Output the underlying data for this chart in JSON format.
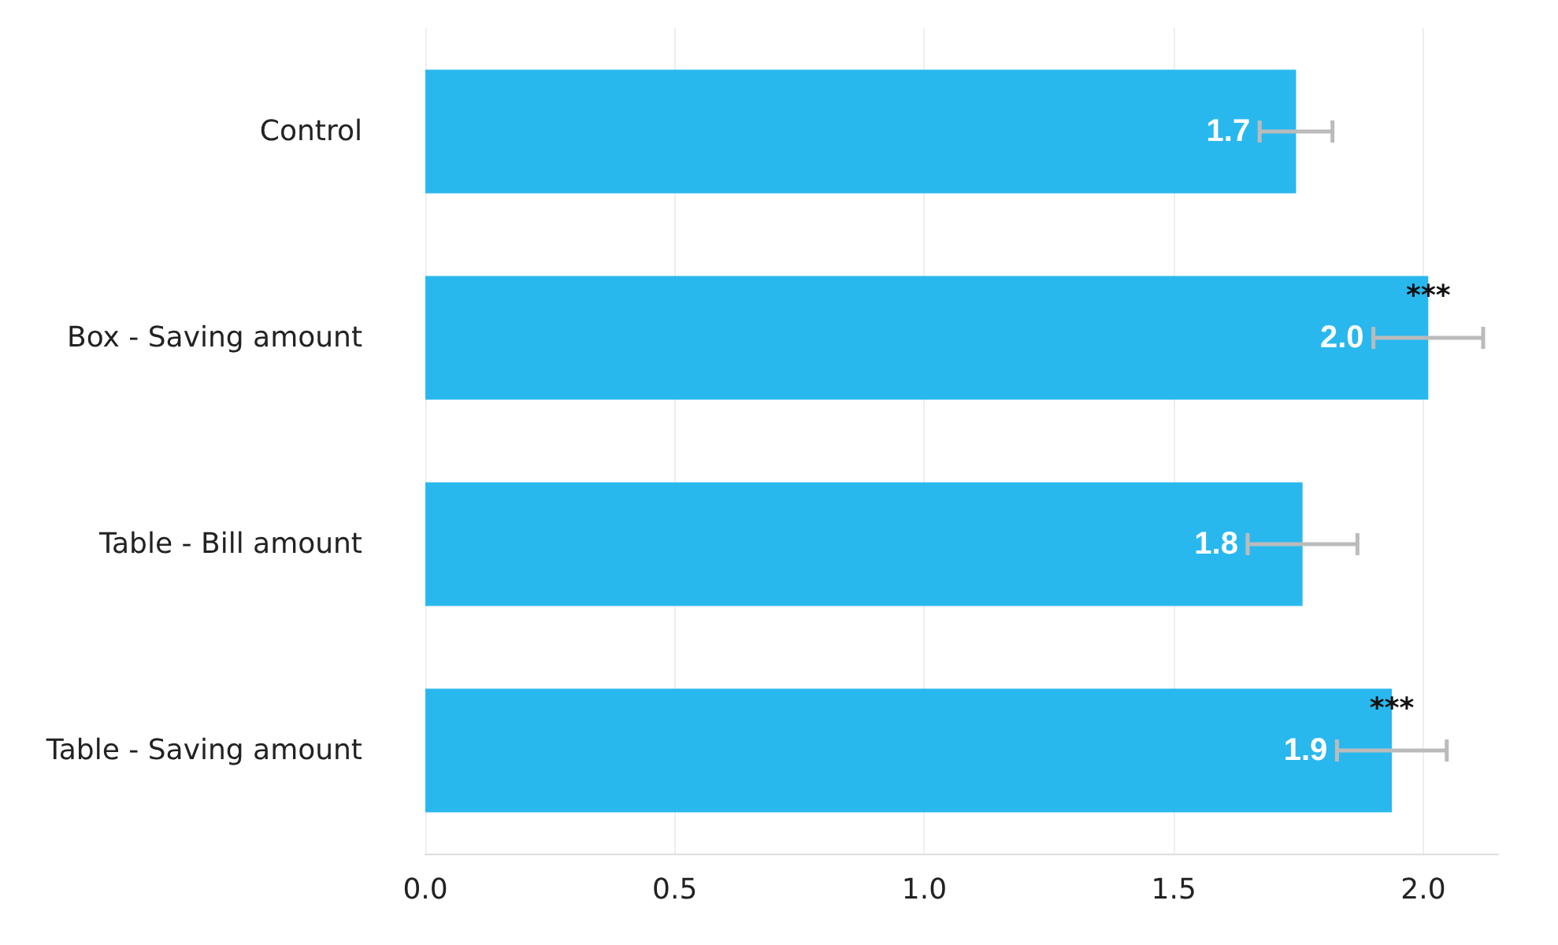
{
  "chart_data": {
    "type": "bar",
    "orientation": "horizontal",
    "categories": [
      "Control",
      "Box - Saving amount",
      "Table - Bill amount",
      "Table - Saving amount"
    ],
    "values": [
      1.745,
      2.01,
      1.758,
      1.937
    ],
    "color": "#29b8ee",
    "errors": [
      0.073,
      0.11,
      0.11,
      0.11
    ],
    "value_labels": [
      "1.7",
      "2.0",
      "1.8",
      "1.9"
    ],
    "annotations": [
      {
        "text": "***",
        "x": 2.01,
        "y": "Box - Saving amount"
      },
      {
        "text": "***",
        "x": 1.937,
        "y": "Table - Saving amount"
      }
    ],
    "xlim": [
      0,
      2.15
    ],
    "xticks": [
      {
        "value": 0,
        "label": "0.0"
      },
      {
        "value": 0.5,
        "label": "0.5"
      },
      {
        "value": 1,
        "label": "1.0"
      },
      {
        "value": 1.5,
        "label": "1.5"
      },
      {
        "value": 2,
        "label": "2.0"
      }
    ],
    "grid": "x"
  }
}
